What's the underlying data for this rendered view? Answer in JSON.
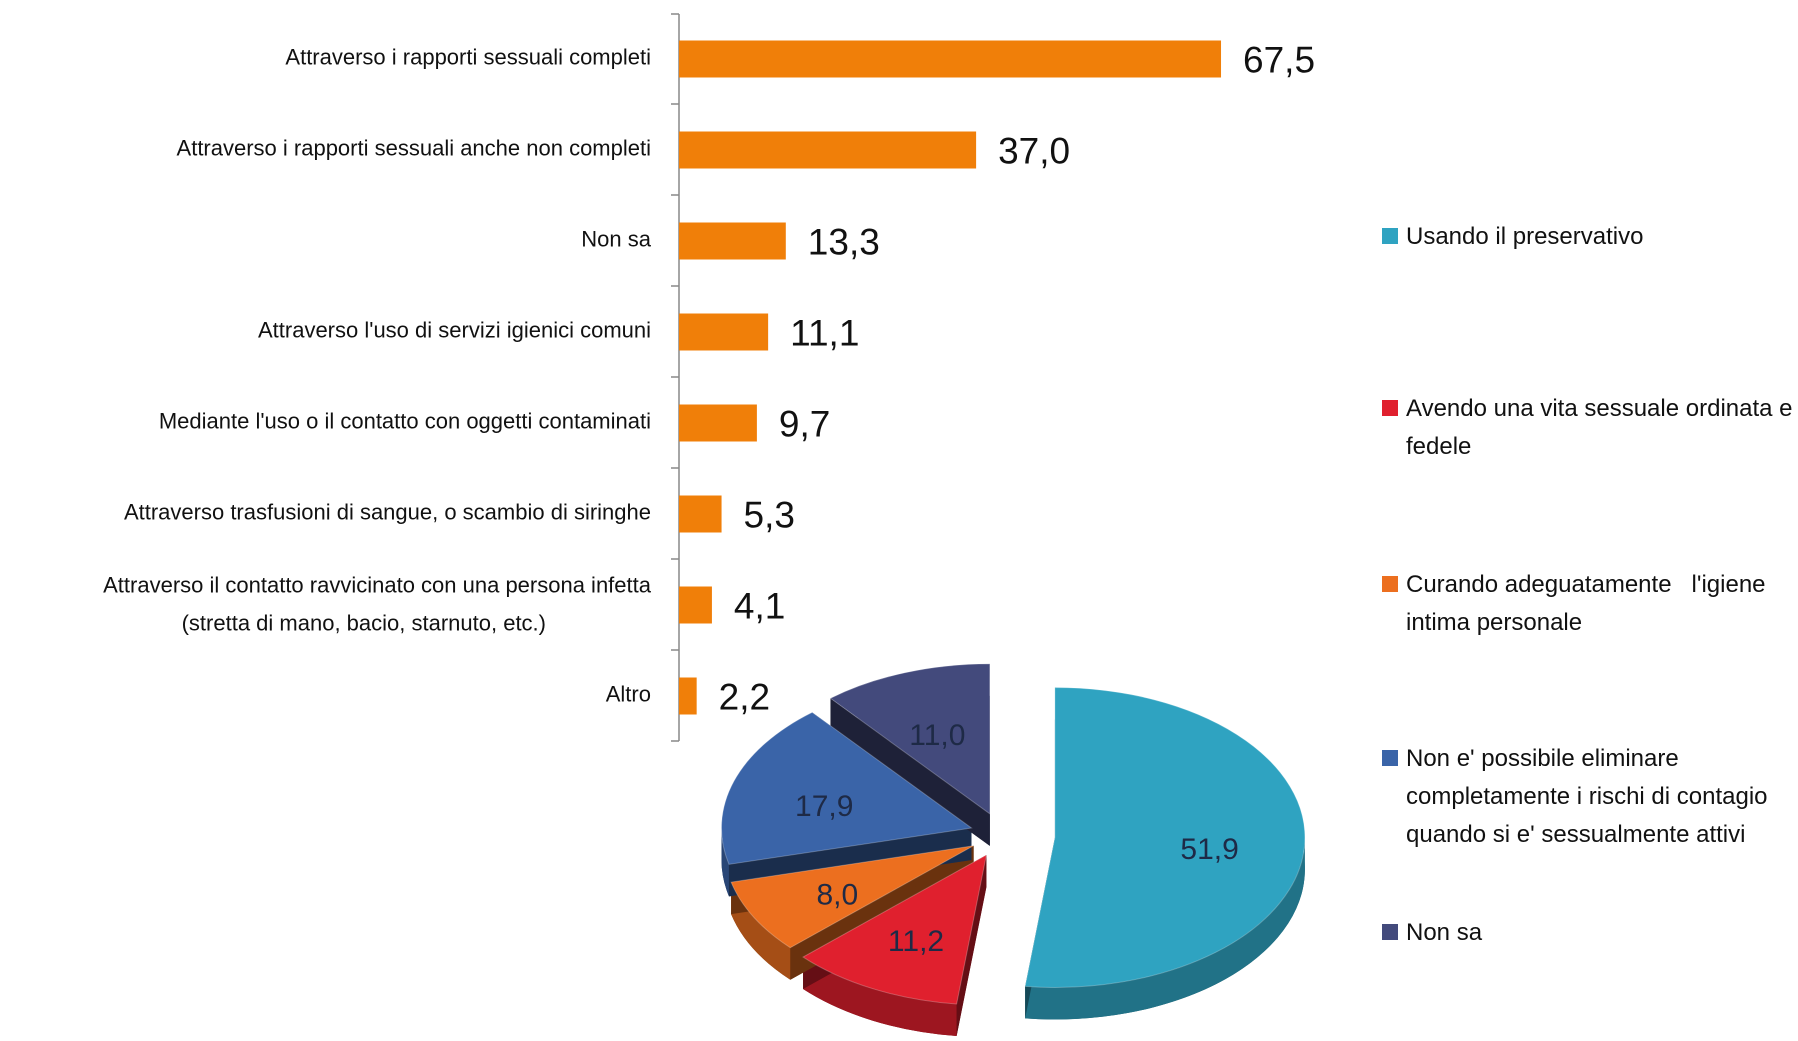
{
  "chart_data": [
    {
      "type": "hbar",
      "categories": [
        "Attraverso i rapporti sessuali  completi",
        "Attraverso i rapporti sessuali anche non completi",
        "Non sa",
        "Attraverso l'uso di servizi igienici comuni",
        "Mediante l'uso o il contatto con oggetti contaminati",
        "Attraverso trasfusioni di sangue, o scambio di siringhe",
        "Attraverso il contatto ravvicinato con una persona infetta\n(stretta di mano, bacio, starnuto, etc.)",
        "Altro"
      ],
      "values": [
        67.5,
        37.0,
        13.3,
        11.1,
        9.7,
        5.3,
        4.1,
        2.2
      ],
      "value_labels": [
        "67,5",
        "37,0",
        "13,3",
        "11,1",
        "9,7",
        "5,3",
        "4,1",
        "2,2"
      ],
      "color": "#f07f09",
      "xlim": [
        0,
        100
      ]
    },
    {
      "type": "pie",
      "series": [
        {
          "name": "Usando il preservativo",
          "color": "#2fa3c1"
        },
        {
          "name": "Avendo una vita sessuale ordinata e fedele",
          "color": "#e0202e"
        },
        {
          "name": "Curando adeguatamente   l'igiene intima personale",
          "color": "#ec6f1f"
        },
        {
          "name": "Non e' possibile eliminare completamente i rischi di contagio quando si e' sessualmente attivi",
          "color": "#3a64a8"
        },
        {
          "name": "Non sa",
          "color": "#434a7c"
        }
      ],
      "values": [
        51.9,
        11.2,
        8.0,
        17.9,
        11.0
      ],
      "value_labels": [
        "51,9",
        "11,2",
        "8,0",
        "17,9",
        "11,0"
      ]
    }
  ]
}
